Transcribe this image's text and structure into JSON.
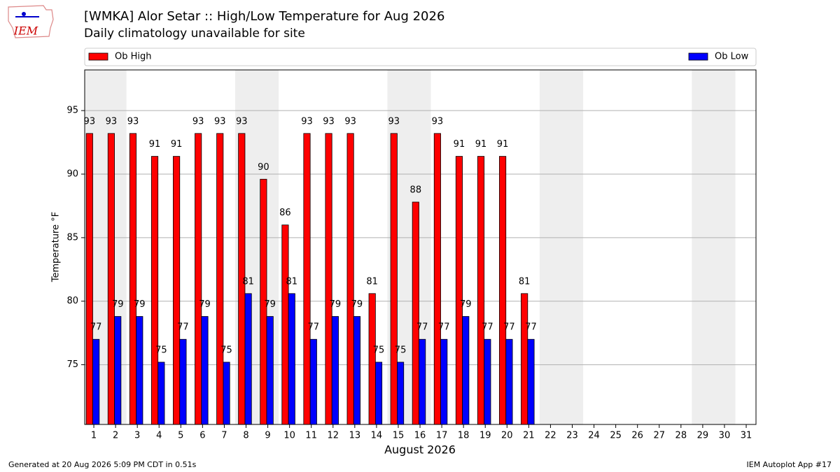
{
  "logo_text": "IEM",
  "footer_left": "Generated at 20 Aug 2026 5:09 PM CDT in 0.51s",
  "footer_right": "IEM Autoplot App #17",
  "chart_data": {
    "type": "bar",
    "title": "[WMKA] Alor Setar :: High/Low Temperature for Aug 2026",
    "subtitle": "Daily climatology unavailable for site",
    "xlabel": "August 2026",
    "ylabel": "Temperature °F",
    "x": [
      1,
      2,
      3,
      4,
      5,
      6,
      7,
      8,
      9,
      10,
      11,
      12,
      13,
      14,
      15,
      16,
      17,
      18,
      19,
      20,
      21,
      22,
      23,
      24,
      25,
      26,
      27,
      28,
      29,
      30,
      31
    ],
    "xlim": [
      0.58,
      31.45
    ],
    "xticks": [
      1,
      2,
      3,
      4,
      5,
      6,
      7,
      8,
      9,
      10,
      11,
      12,
      13,
      14,
      15,
      16,
      17,
      18,
      19,
      20,
      21,
      22,
      23,
      24,
      25,
      26,
      27,
      28,
      29,
      30,
      31
    ],
    "ylim": [
      70.3,
      98.2
    ],
    "yticks": [
      75,
      80,
      85,
      90,
      95
    ],
    "grid": true,
    "shaded_spans": [
      [
        0.5,
        2.5
      ],
      [
        7.5,
        9.5
      ],
      [
        14.5,
        16.5
      ],
      [
        21.5,
        23.5
      ],
      [
        28.5,
        30.5
      ]
    ],
    "shade_color": "#eeeeee",
    "legend": "top",
    "series": [
      {
        "name": "Ob High",
        "color": "#ff0000",
        "values": [
          93.2,
          93.2,
          93.2,
          91.4,
          91.4,
          93.2,
          93.2,
          93.2,
          89.6,
          86.0,
          93.2,
          93.2,
          93.2,
          80.6,
          93.2,
          87.8,
          93.2,
          91.4,
          91.4,
          91.4,
          80.6,
          null,
          null,
          null,
          null,
          null,
          null,
          null,
          null,
          null,
          null
        ],
        "value_labels": [
          "93",
          "93",
          "93",
          "91",
          "91",
          "93",
          "93",
          "93",
          "90",
          "86",
          "93",
          "93",
          "93",
          "81",
          "93",
          "88",
          "93",
          "91",
          "91",
          "91",
          "81",
          null,
          null,
          null,
          null,
          null,
          null,
          null,
          null,
          null,
          null
        ]
      },
      {
        "name": "Ob Low",
        "color": "#0000ff",
        "values": [
          77.0,
          78.8,
          78.8,
          75.2,
          77.0,
          78.8,
          75.2,
          80.6,
          78.8,
          80.6,
          77.0,
          78.8,
          78.8,
          75.2,
          75.2,
          77.0,
          77.0,
          78.8,
          77.0,
          77.0,
          77.0,
          null,
          null,
          null,
          null,
          null,
          null,
          null,
          null,
          null,
          null
        ],
        "value_labels": [
          "77",
          "79",
          "79",
          "75",
          "77",
          "79",
          "75",
          "81",
          "79",
          "81",
          "77",
          "79",
          "79",
          "75",
          "75",
          "77",
          "77",
          "79",
          "77",
          "77",
          "77",
          null,
          null,
          null,
          null,
          null,
          null,
          null,
          null,
          null,
          null
        ]
      }
    ]
  }
}
